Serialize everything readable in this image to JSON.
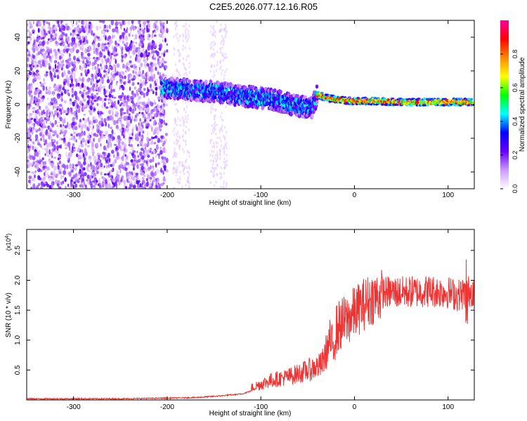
{
  "title": "C2E5.2026.077.12.16.R05",
  "chart_data": [
    {
      "type": "heatmap",
      "title": "C2E5.2026.077.12.16.R05",
      "xlabel": "Height of straight line (km)",
      "ylabel": "Frequency (Hz)",
      "xlim": [
        -350,
        128
      ],
      "ylim": [
        -50,
        50
      ],
      "xticks": [
        -300,
        -200,
        -100,
        0,
        100
      ],
      "xtick_labels": [
        "-300",
        "-200",
        "-100",
        "0",
        "100"
      ],
      "yticks": [
        -40,
        -20,
        0,
        20,
        40
      ],
      "ytick_labels": [
        "-40",
        "-20",
        "0",
        "20",
        "40"
      ],
      "colorbar": {
        "label": "Normalized spectral amplitude",
        "range": [
          0,
          1
        ],
        "ticks": [
          0.0,
          0.2,
          0.4,
          0.6,
          0.8
        ],
        "tick_labels": [
          "0.0",
          "0.2",
          "0.4",
          "0.6",
          "0.8"
        ],
        "colors": [
          "#ffffff",
          "#cc99ff",
          "#6600ff",
          "#0000ff",
          "#00ffff",
          "#00ff00",
          "#ffff00",
          "#ff8800",
          "#ff0000",
          "#ff0099"
        ]
      },
      "ridge": {
        "x": [
          -205,
          -180,
          -160,
          -140,
          -120,
          -100,
          -80,
          -60,
          -45,
          -40,
          -30,
          -20,
          0,
          20,
          50,
          80,
          110,
          128
        ],
        "y": [
          10,
          9,
          8,
          7,
          5,
          4,
          2,
          -1,
          -2,
          6,
          4,
          3,
          2,
          2,
          1.5,
          1.5,
          1.5,
          1.5
        ]
      }
    },
    {
      "type": "line",
      "xlabel": "Height of straight line (km)",
      "ylabel": "SNR (10 * v/v)",
      "y_multiplier_label": "(x10",
      "y_multiplier_exp": "4",
      "y_multiplier_close": ")",
      "xlim": [
        -350,
        128
      ],
      "ylim": [
        0,
        2.85
      ],
      "xticks": [
        -300,
        -200,
        -100,
        0,
        100
      ],
      "xtick_labels": [
        "-300",
        "-200",
        "-100",
        "0",
        "100"
      ],
      "yticks": [
        0.5,
        1.0,
        1.5,
        2.0,
        2.5
      ],
      "ytick_labels": [
        "0.5",
        "1.0",
        "1.5",
        "2.0",
        "2.5"
      ],
      "color": "#ee3333",
      "envelope": {
        "x": [
          -350,
          -250,
          -200,
          -170,
          -150,
          -120,
          -105,
          -90,
          -70,
          -50,
          -35,
          -25,
          -20,
          -15,
          -10,
          0,
          10,
          20,
          30,
          50,
          80,
          100,
          110,
          120,
          128
        ],
        "y": [
          0.02,
          0.02,
          0.03,
          0.04,
          0.06,
          0.1,
          0.18,
          0.25,
          0.3,
          0.38,
          0.45,
          0.8,
          1.2,
          1.3,
          1.35,
          1.5,
          1.65,
          1.75,
          1.8,
          1.8,
          1.82,
          1.8,
          1.75,
          1.8,
          1.85
        ]
      }
    }
  ]
}
